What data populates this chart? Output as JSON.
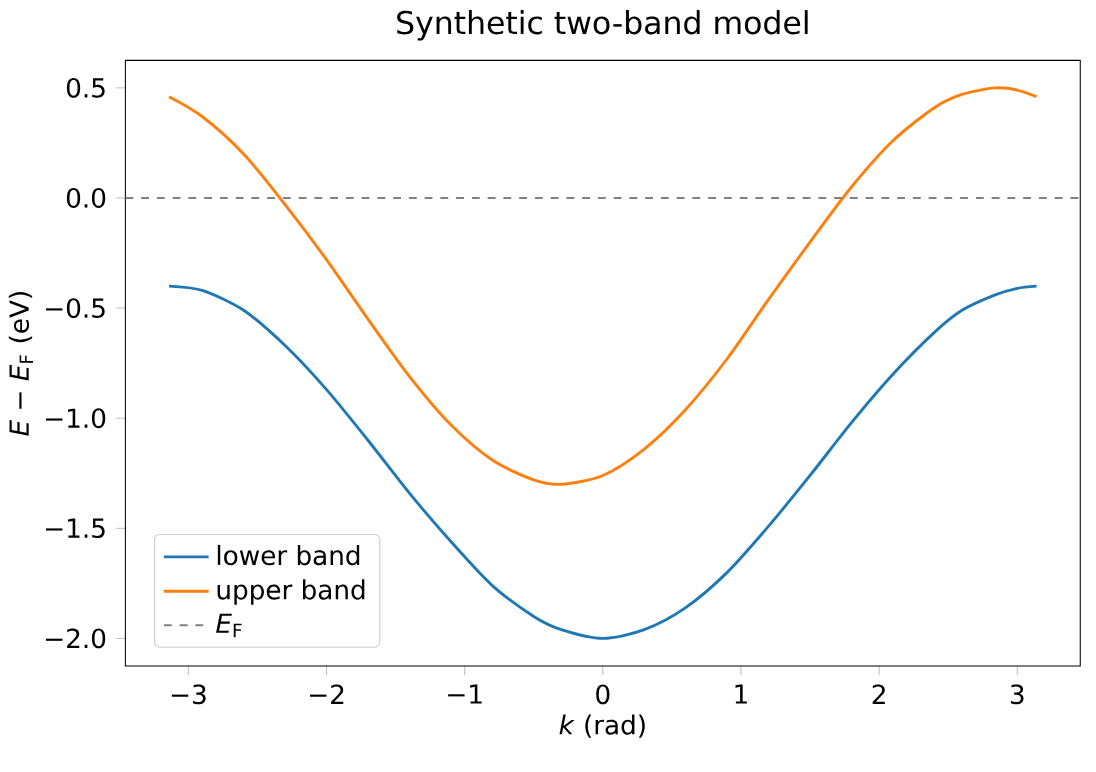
{
  "chart_data": {
    "type": "line",
    "title": "Synthetic two-band model",
    "xlabel": "*k* (rad)",
    "ylabel": "*E* − *E*$_{F}$ (eV)",
    "x": [
      -3.14,
      -2.9,
      -2.6,
      -2.3,
      -2.0,
      -1.7,
      -1.4,
      -1.1,
      -0.8,
      -0.5,
      -0.3,
      0,
      0.3,
      0.6,
      0.9,
      1.2,
      1.5,
      1.8,
      2.1,
      2.4,
      2.6,
      2.84,
      3.0,
      3.14
    ],
    "series": [
      {
        "name": "lower band",
        "color": "#1f77b4",
        "values": [
          -0.4,
          -0.42,
          -0.51,
          -0.67,
          -0.87,
          -1.1,
          -1.34,
          -1.56,
          -1.76,
          -1.9,
          -1.96,
          -2.0,
          -1.96,
          -1.86,
          -1.7,
          -1.49,
          -1.26,
          -1.02,
          -0.8,
          -0.61,
          -0.51,
          -0.44,
          -0.41,
          -0.4
        ]
      },
      {
        "name": "upper band",
        "color": "#ff7f0e",
        "values": [
          0.46,
          0.37,
          0.2,
          -0.03,
          -0.28,
          -0.55,
          -0.81,
          -1.03,
          -1.19,
          -1.28,
          -1.3,
          -1.26,
          -1.14,
          -0.96,
          -0.73,
          -0.46,
          -0.2,
          0.05,
          0.26,
          0.41,
          0.47,
          0.5,
          0.49,
          0.46
        ]
      }
    ],
    "xlim": [
      -3.456,
      3.456
    ],
    "ylim": [
      -2.125,
      0.625
    ],
    "xticks": [
      {
        "value": -3,
        "label": "−3"
      },
      {
        "value": -2,
        "label": "−2"
      },
      {
        "value": -1,
        "label": "−1"
      },
      0,
      1,
      2,
      3
    ],
    "yticks": [
      {
        "value": -2.0,
        "label": "−2.0"
      },
      {
        "value": -1.5,
        "label": "−1.5"
      },
      {
        "value": -1.0,
        "label": "−1.0"
      },
      {
        "value": -0.5,
        "label": "−0.5"
      },
      {
        "value": 0.0,
        "label": "0.0"
      },
      {
        "value": 0.5,
        "label": "0.5"
      }
    ],
    "ref_lines": [
      {
        "axis": "y",
        "value": 0,
        "label": "*E*$_{F}$",
        "color": "#808080",
        "line_style": "dashed"
      }
    ],
    "legend": "bottom left",
    "grid": false,
    "marker": "none",
    "line_style": "solid"
  }
}
